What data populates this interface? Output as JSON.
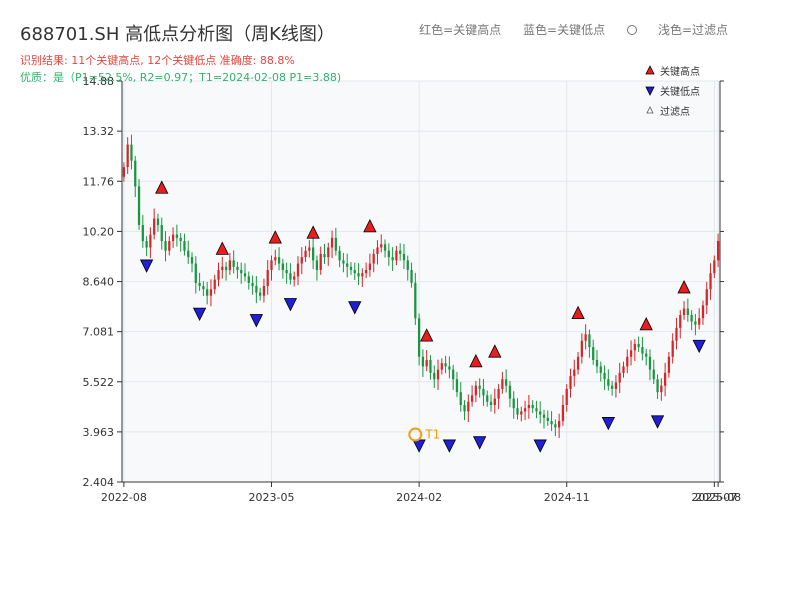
{
  "title": "688701.SH 高低点分析图（周K线图）",
  "subtitle1": "识别结果: 11个关键高点, 12个关键低点 准确度: 88.8%",
  "subtitle2": "优质：是（P1=52.5%, R2=0.97；T1=2024-02-08 P1=3.88)",
  "top_legend": {
    "red": "红色=关键高点",
    "blue": "蓝色=关键低点",
    "light": "浅色=过滤点"
  },
  "colors": {
    "up": "#d62728",
    "down": "#1a9641",
    "high_marker": "#e81e1e",
    "low_marker": "#1f1fd6",
    "t1_ring": "#f39c12"
  },
  "chart_data": {
    "type": "candlestick",
    "ylim": [
      2.404,
      14.88
    ],
    "y_ticks": [
      "2.404",
      "3.963",
      "5.522",
      "7.081",
      "8.640",
      "10.20",
      "11.76",
      "13.32",
      "14.88"
    ],
    "x_ticks": [
      "2022-08",
      "2023-05",
      "2024-02",
      "2024-11",
      "2025-07",
      "2025-08"
    ],
    "x_tick_weeks": [
      0,
      39,
      78,
      117,
      156,
      157
    ],
    "total_weeks": 158,
    "closes": [
      12.2,
      12.9,
      12.4,
      11.6,
      10.4,
      9.9,
      9.7,
      10.1,
      10.6,
      10.4,
      9.9,
      9.6,
      9.9,
      10.1,
      10.0,
      9.9,
      9.6,
      9.4,
      9.2,
      8.6,
      8.5,
      8.4,
      8.2,
      8.4,
      8.7,
      9.0,
      9.1,
      9.0,
      9.3,
      9.1,
      9.0,
      8.9,
      8.8,
      8.6,
      8.5,
      8.3,
      8.2,
      8.5,
      9.0,
      9.3,
      9.4,
      9.2,
      9.0,
      8.9,
      8.7,
      8.8,
      9.2,
      9.4,
      9.6,
      9.7,
      9.3,
      9.0,
      9.5,
      9.4,
      9.7,
      10.0,
      9.6,
      9.3,
      9.2,
      9.1,
      9.0,
      8.9,
      8.8,
      8.9,
      9.0,
      9.2,
      9.5,
      9.7,
      9.8,
      9.6,
      9.4,
      9.3,
      9.6,
      9.5,
      9.3,
      9.0,
      8.6,
      7.5,
      6.3,
      6.0,
      6.2,
      5.8,
      5.6,
      5.9,
      6.1,
      6.0,
      5.9,
      5.6,
      5.2,
      4.8,
      4.6,
      4.9,
      5.1,
      5.4,
      5.3,
      5.1,
      4.9,
      4.8,
      5.0,
      5.3,
      5.6,
      5.4,
      5.0,
      4.7,
      4.5,
      4.6,
      4.7,
      4.8,
      4.7,
      4.6,
      4.5,
      4.4,
      4.3,
      4.2,
      4.1,
      4.3,
      4.8,
      5.3,
      5.7,
      5.9,
      6.3,
      6.8,
      7.0,
      6.6,
      6.2,
      6.0,
      5.8,
      5.6,
      5.4,
      5.3,
      5.5,
      5.8,
      6.0,
      6.3,
      6.5,
      6.7,
      6.6,
      6.4,
      6.3,
      5.9,
      5.6,
      5.2,
      5.4,
      5.8,
      6.3,
      6.8,
      7.2,
      7.6,
      7.8,
      7.6,
      7.4,
      7.3,
      7.5,
      7.9,
      8.4,
      8.9,
      9.3,
      9.9
    ]
  },
  "markers": {
    "highs": [
      {
        "week": 10,
        "price": 11.2
      },
      {
        "week": 26,
        "price": 9.3
      },
      {
        "week": 40,
        "price": 9.65
      },
      {
        "week": 50,
        "price": 9.8
      },
      {
        "week": 65,
        "price": 10.0
      },
      {
        "week": 80,
        "price": 6.6
      },
      {
        "week": 93,
        "price": 5.8
      },
      {
        "week": 98,
        "price": 6.1
      },
      {
        "week": 120,
        "price": 7.3
      },
      {
        "week": 138,
        "price": 6.95
      },
      {
        "week": 148,
        "price": 8.1
      }
    ],
    "lows": [
      {
        "week": 6,
        "price": 9.5
      },
      {
        "week": 20,
        "price": 8.0
      },
      {
        "week": 35,
        "price": 7.8
      },
      {
        "week": 44,
        "price": 8.3
      },
      {
        "week": 61,
        "price": 8.2
      },
      {
        "week": 78,
        "price": 3.9
      },
      {
        "week": 86,
        "price": 3.9
      },
      {
        "week": 94,
        "price": 4.0
      },
      {
        "week": 110,
        "price": 3.9
      },
      {
        "week": 128,
        "price": 4.6
      },
      {
        "week": 141,
        "price": 4.65
      },
      {
        "week": 152,
        "price": 7.0
      }
    ],
    "t1": {
      "week": 77,
      "price": 3.88,
      "label": "T1"
    }
  },
  "legend": {
    "high": "关键高点",
    "low": "关键低点",
    "filtered": "过滤点"
  }
}
